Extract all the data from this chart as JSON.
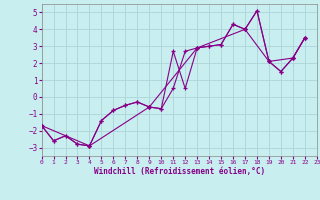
{
  "xlabel": "Windchill (Refroidissement éolien,°C)",
  "bg_color": "#c8eef0",
  "grid_color": "#b0d8dc",
  "line_color": "#880088",
  "line1": [
    [
      0,
      -1.7
    ],
    [
      1,
      -2.6
    ],
    [
      2,
      -2.3
    ],
    [
      3,
      -2.8
    ],
    [
      4,
      -2.9
    ],
    [
      5,
      -1.4
    ],
    [
      6,
      -0.8
    ],
    [
      7,
      -0.5
    ],
    [
      8,
      -0.3
    ],
    [
      9,
      -0.6
    ],
    [
      10,
      -0.7
    ],
    [
      11,
      2.7
    ],
    [
      12,
      0.5
    ],
    [
      13,
      2.9
    ],
    [
      14,
      3.0
    ],
    [
      15,
      3.1
    ],
    [
      16,
      4.3
    ],
    [
      17,
      4.0
    ],
    [
      18,
      5.1
    ],
    [
      19,
      2.1
    ],
    [
      20,
      1.5
    ],
    [
      21,
      2.3
    ],
    [
      22,
      3.5
    ]
  ],
  "line2": [
    [
      0,
      -1.7
    ],
    [
      1,
      -2.6
    ],
    [
      2,
      -2.3
    ],
    [
      3,
      -2.8
    ],
    [
      4,
      -2.9
    ],
    [
      5,
      -1.4
    ],
    [
      6,
      -0.8
    ],
    [
      7,
      -0.5
    ],
    [
      8,
      -0.3
    ],
    [
      9,
      -0.6
    ],
    [
      10,
      -0.7
    ],
    [
      11,
      0.5
    ],
    [
      12,
      2.7
    ],
    [
      13,
      2.9
    ],
    [
      14,
      3.0
    ],
    [
      15,
      3.1
    ],
    [
      16,
      4.3
    ],
    [
      17,
      4.0
    ],
    [
      18,
      5.1
    ],
    [
      19,
      2.1
    ],
    [
      20,
      1.5
    ],
    [
      21,
      2.3
    ],
    [
      22,
      3.5
    ]
  ],
  "line3": [
    [
      0,
      -1.7
    ],
    [
      4,
      -2.9
    ],
    [
      9,
      -0.6
    ],
    [
      13,
      2.9
    ],
    [
      17,
      4.0
    ],
    [
      19,
      2.1
    ],
    [
      21,
      2.3
    ],
    [
      22,
      3.5
    ]
  ],
  "xlim": [
    0,
    23
  ],
  "ylim": [
    -3.5,
    5.5
  ],
  "yticks": [
    -3,
    -2,
    -1,
    0,
    1,
    2,
    3,
    4,
    5
  ],
  "xticks": [
    0,
    1,
    2,
    3,
    4,
    5,
    6,
    7,
    8,
    9,
    10,
    11,
    12,
    13,
    14,
    15,
    16,
    17,
    18,
    19,
    20,
    21,
    22,
    23
  ]
}
